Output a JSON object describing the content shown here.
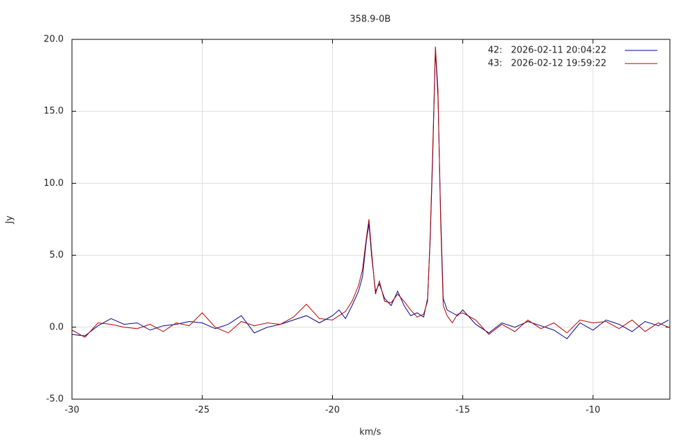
{
  "chart_data": {
    "type": "line",
    "title": "358.9-0B",
    "x_label": "km/s",
    "y_label": "Jy",
    "x": [
      -30,
      -29.5,
      -29,
      -28.5,
      -28,
      -27.5,
      -27,
      -26.5,
      -26,
      -25.5,
      -25,
      -24.5,
      -24,
      -23.5,
      -23,
      -22.5,
      -22,
      -21.5,
      -21,
      -20.5,
      -20,
      -19.75,
      -19.5,
      -19.25,
      -19,
      -18.85,
      -18.7,
      -18.6,
      -18.5,
      -18.35,
      -18.2,
      -18,
      -17.75,
      -17.5,
      -17.25,
      -17,
      -16.75,
      -16.5,
      -16.35,
      -16.25,
      -16.15,
      -16.05,
      -15.95,
      -15.85,
      -15.75,
      -15.6,
      -15.4,
      -15.2,
      -15,
      -14.5,
      -14,
      -13.5,
      -13,
      -12.5,
      -12,
      -11.5,
      -11,
      -10.5,
      -10,
      -9.5,
      -9,
      -8.5,
      -8,
      -7.5,
      -7.1
    ],
    "series": [
      {
        "name": "42:   2026-02-11 20:04:22",
        "color": "#00008b",
        "values": [
          -0.5,
          -0.6,
          0.1,
          0.6,
          0.2,
          0.3,
          -0.2,
          0.1,
          0.2,
          0.4,
          0.3,
          -0.1,
          0.2,
          0.8,
          -0.4,
          0.0,
          0.2,
          0.5,
          0.8,
          0.3,
          0.8,
          1.2,
          0.6,
          1.5,
          2.5,
          3.5,
          6.0,
          7.2,
          5.0,
          2.5,
          3.0,
          2.0,
          1.5,
          2.5,
          1.5,
          0.8,
          1.0,
          0.7,
          2.0,
          6.0,
          12.0,
          19.3,
          16.0,
          8.0,
          2.0,
          1.2,
          1.0,
          0.8,
          1.2,
          0.2,
          -0.4,
          0.3,
          0.0,
          0.4,
          0.1,
          -0.2,
          -0.8,
          0.3,
          -0.2,
          0.5,
          0.2,
          -0.3,
          0.4,
          0.1,
          0.5
        ]
      },
      {
        "name": "43:   2026-02-12 19:59:22",
        "color": "#b00000",
        "values": [
          -0.2,
          -0.7,
          0.3,
          0.2,
          0.0,
          -0.1,
          0.2,
          -0.3,
          0.3,
          0.1,
          1.0,
          0.0,
          -0.4,
          0.4,
          0.1,
          0.3,
          0.2,
          0.7,
          1.6,
          0.6,
          0.5,
          0.8,
          1.1,
          1.8,
          2.9,
          4.0,
          6.2,
          7.5,
          5.3,
          2.3,
          3.2,
          1.8,
          1.7,
          2.3,
          1.8,
          1.2,
          0.7,
          0.9,
          1.8,
          6.3,
          12.5,
          19.5,
          16.5,
          7.5,
          1.5,
          0.8,
          0.3,
          0.9,
          1.0,
          0.5,
          -0.5,
          0.2,
          -0.3,
          0.5,
          -0.1,
          0.3,
          -0.4,
          0.5,
          0.3,
          0.4,
          -0.1,
          0.5,
          -0.3,
          0.3,
          0.0
        ]
      }
    ],
    "xlim": [
      -30,
      -7.05
    ],
    "xticks": [
      -30,
      -25,
      -20,
      -15,
      -10
    ],
    "ylim": [
      -5,
      20
    ],
    "yticks": [
      {
        "value": -5,
        "label": "-5.0"
      },
      {
        "value": 0,
        "label": "0.0"
      },
      {
        "value": 5,
        "label": "5.0"
      },
      {
        "value": 10,
        "label": "10.0"
      },
      {
        "value": 15,
        "label": "15.0"
      },
      {
        "value": 20,
        "label": "20.0"
      }
    ],
    "grid": true,
    "legend": "top-right"
  }
}
